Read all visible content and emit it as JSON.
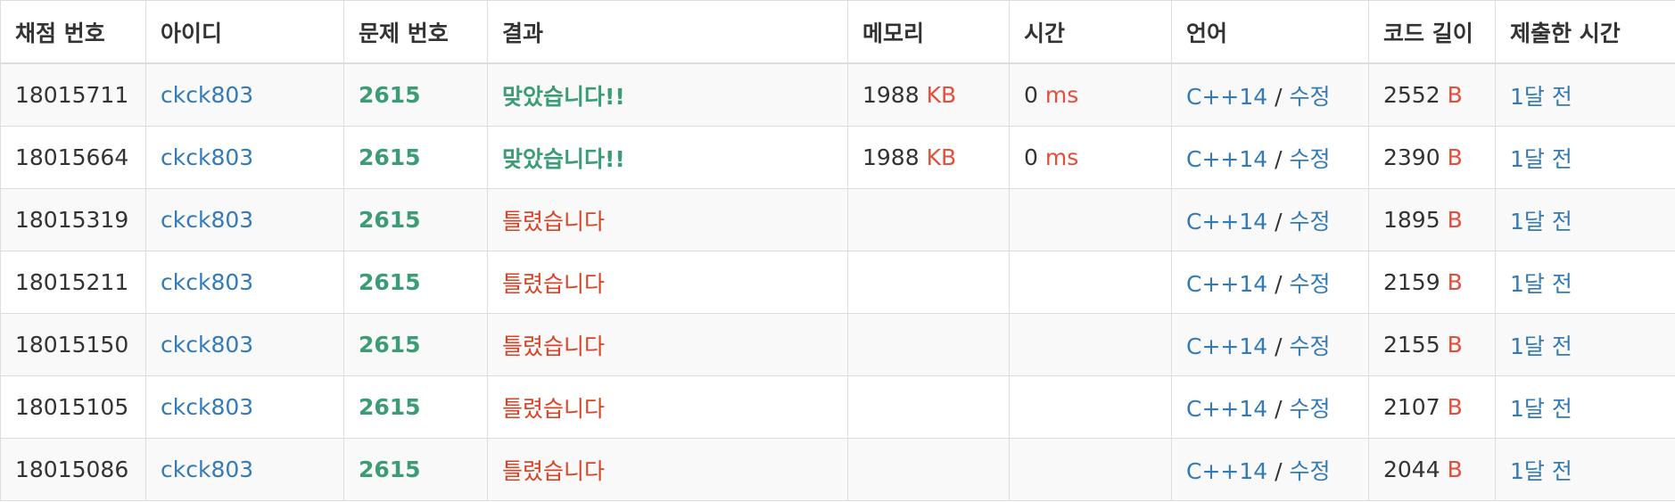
{
  "headers": [
    "채점 번호",
    "아이디",
    "문제 번호",
    "결과",
    "메모리",
    "시간",
    "언어",
    "코드 길이",
    "제출한 시간"
  ],
  "units": {
    "memory": "KB",
    "time": "ms",
    "code": "B"
  },
  "colors": {
    "link": "#337ab7",
    "accepted": "#3c9c76",
    "wrong": "#dd4124",
    "unit": "#e74c3c",
    "row_stripe": "#f9f9f9",
    "border": "#dddddd"
  },
  "rows": [
    {
      "id": "18015711",
      "user": "ckck803",
      "problem": "2615",
      "result": "맞았습니다!!",
      "result_type": "ac",
      "memory": "1988",
      "time": "0",
      "language": "C++14",
      "edit": "수정",
      "length": "2552",
      "submitted": "1달 전"
    },
    {
      "id": "18015664",
      "user": "ckck803",
      "problem": "2615",
      "result": "맞았습니다!!",
      "result_type": "ac",
      "memory": "1988",
      "time": "0",
      "language": "C++14",
      "edit": "수정",
      "length": "2390",
      "submitted": "1달 전"
    },
    {
      "id": "18015319",
      "user": "ckck803",
      "problem": "2615",
      "result": "틀렸습니다",
      "result_type": "wa",
      "memory": "",
      "time": "",
      "language": "C++14",
      "edit": "수정",
      "length": "1895",
      "submitted": "1달 전"
    },
    {
      "id": "18015211",
      "user": "ckck803",
      "problem": "2615",
      "result": "틀렸습니다",
      "result_type": "wa",
      "memory": "",
      "time": "",
      "language": "C++14",
      "edit": "수정",
      "length": "2159",
      "submitted": "1달 전"
    },
    {
      "id": "18015150",
      "user": "ckck803",
      "problem": "2615",
      "result": "틀렸습니다",
      "result_type": "wa",
      "memory": "",
      "time": "",
      "language": "C++14",
      "edit": "수정",
      "length": "2155",
      "submitted": "1달 전"
    },
    {
      "id": "18015105",
      "user": "ckck803",
      "problem": "2615",
      "result": "틀렸습니다",
      "result_type": "wa",
      "memory": "",
      "time": "",
      "language": "C++14",
      "edit": "수정",
      "length": "2107",
      "submitted": "1달 전"
    },
    {
      "id": "18015086",
      "user": "ckck803",
      "problem": "2615",
      "result": "틀렸습니다",
      "result_type": "wa",
      "memory": "",
      "time": "",
      "language": "C++14",
      "edit": "수정",
      "length": "2044",
      "submitted": "1달 전"
    }
  ]
}
